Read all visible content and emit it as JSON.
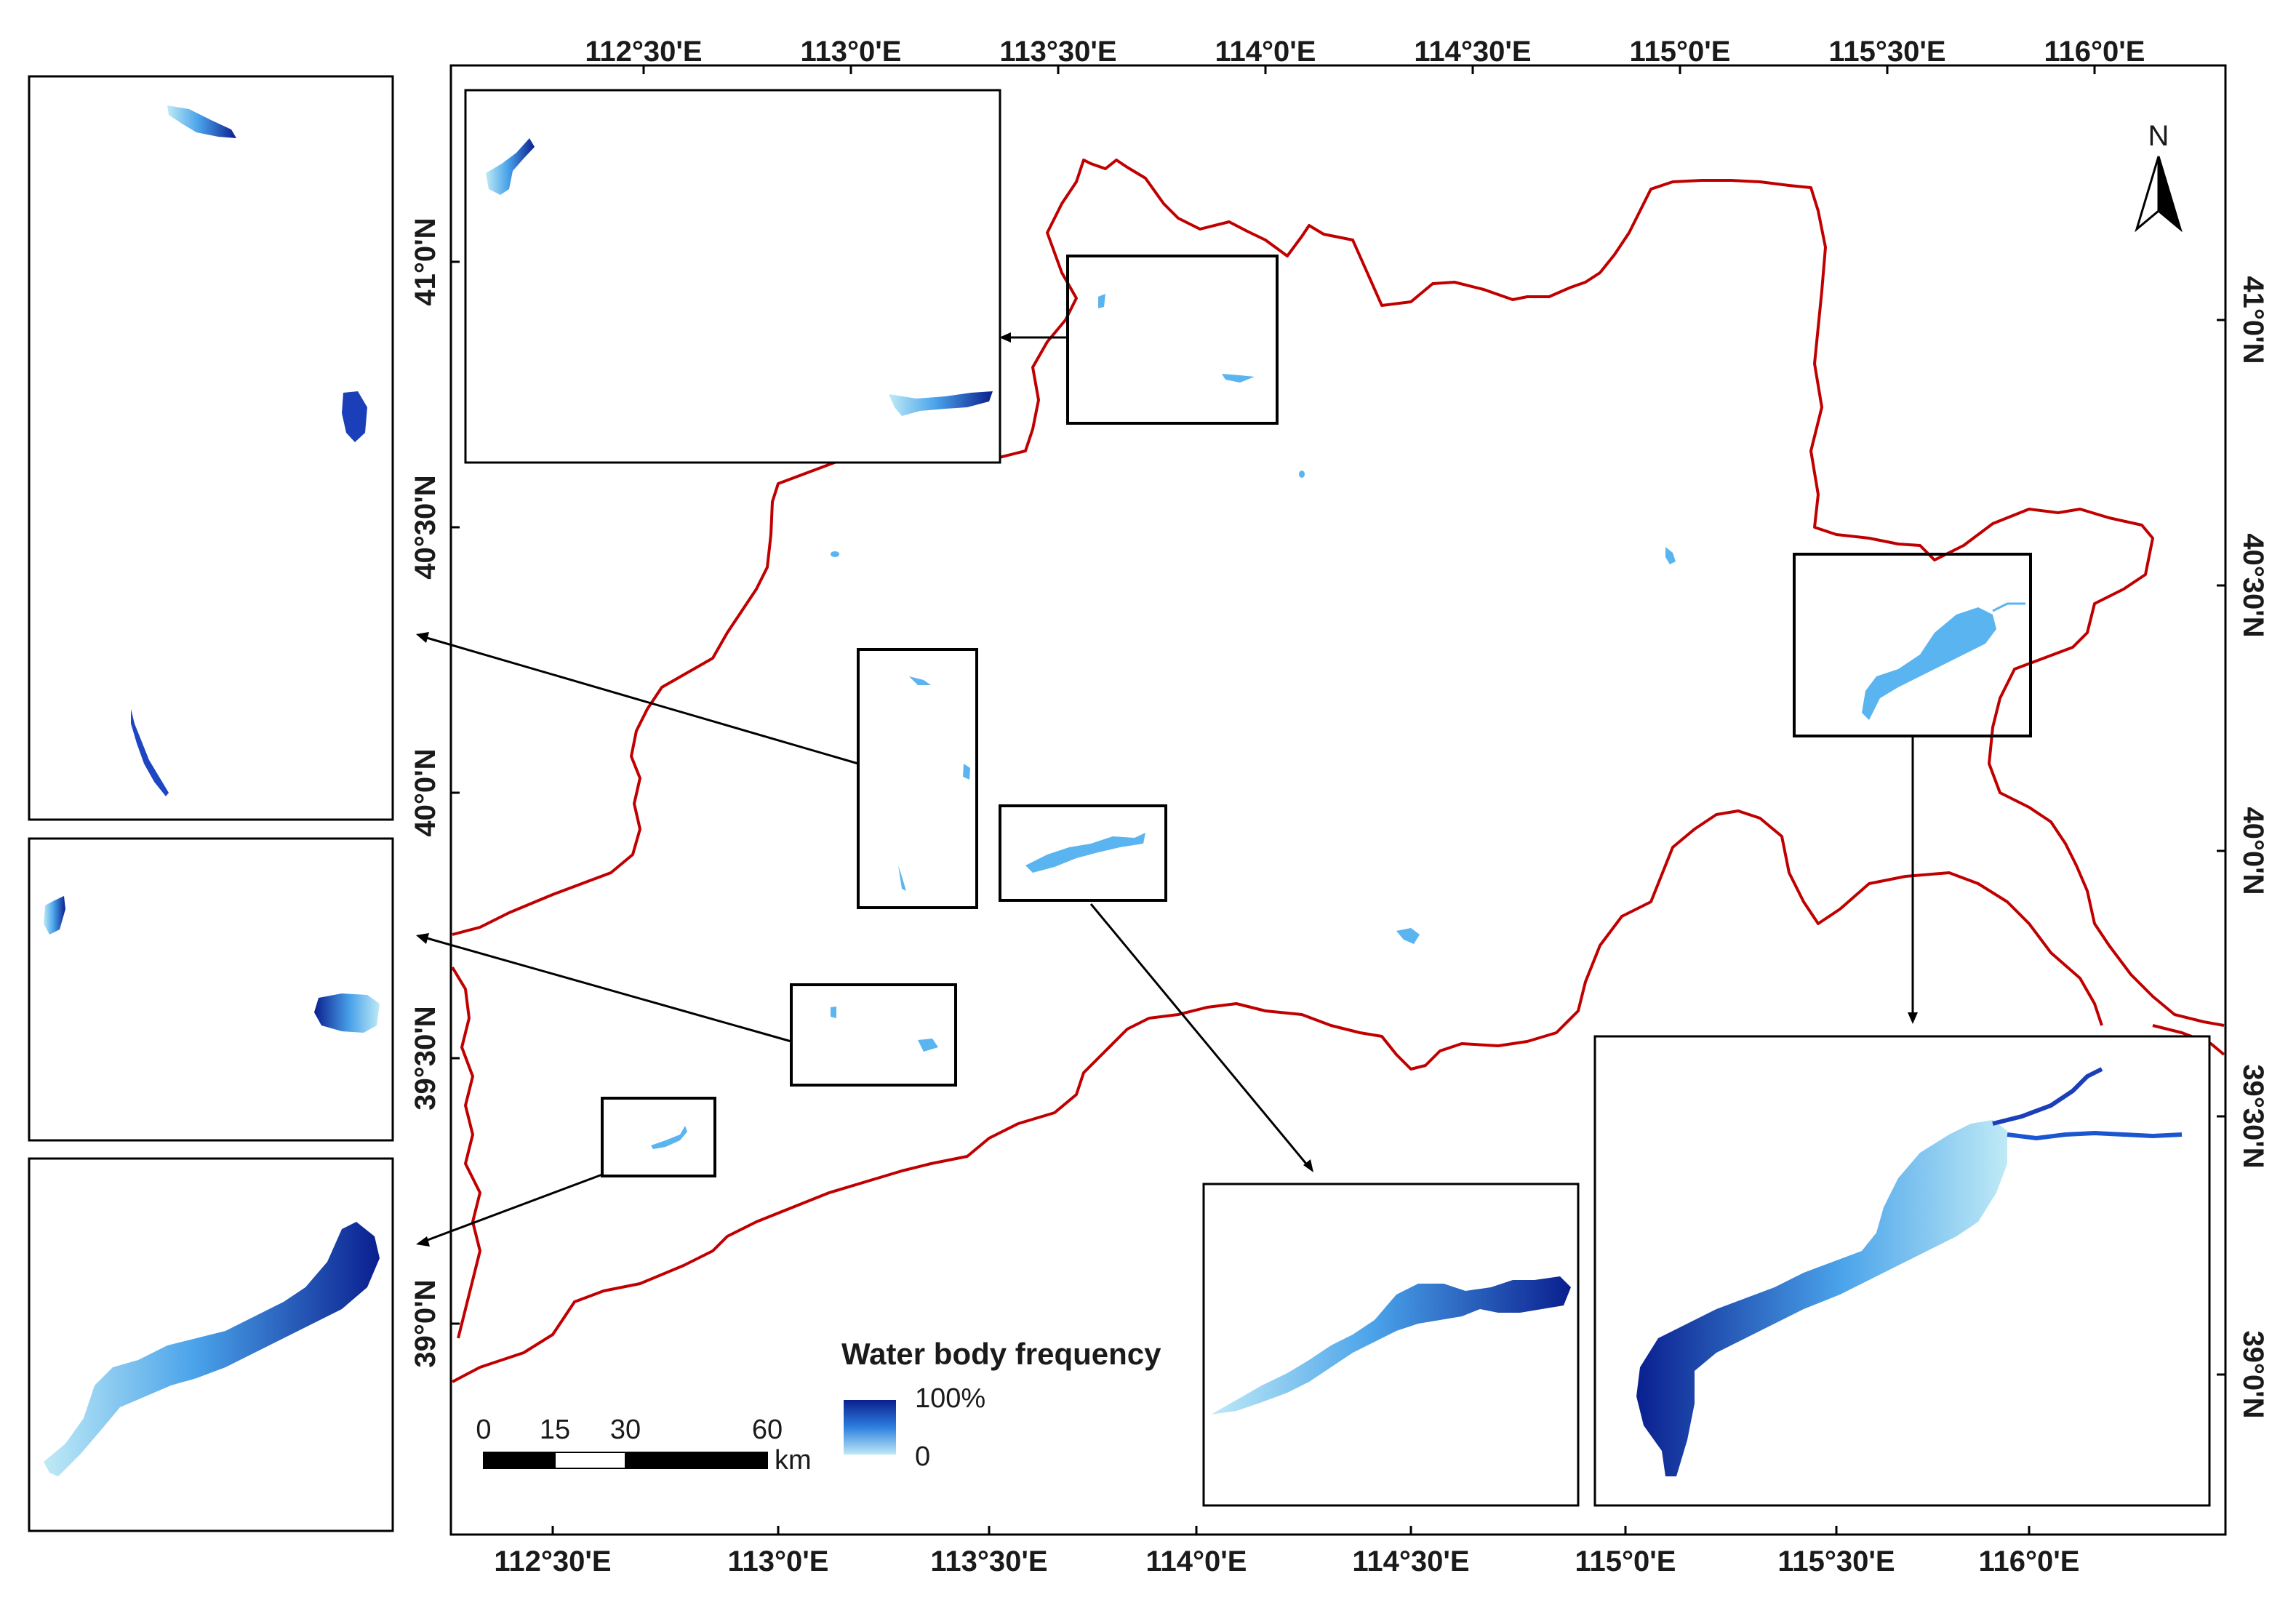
{
  "map": {
    "top_axis": [
      "112°30'E",
      "113°0'E",
      "113°30'E",
      "114°0'E",
      "114°30'E",
      "115°0'E",
      "115°30'E",
      "116°0'E"
    ],
    "bottom_axis": [
      "112°30'E",
      "113°0'E",
      "113°30'E",
      "114°0'E",
      "114°30'E",
      "115°0'E",
      "115°30'E",
      "116°0'E"
    ],
    "left_axis": [
      "41°0'N",
      "40°30'N",
      "40°0'N",
      "39°30'N",
      "39°0'N"
    ],
    "right_axis": [
      "41°0'N",
      "40°30'N",
      "40°0'N",
      "39°30'N",
      "39°0'N"
    ]
  },
  "legend": {
    "title": "Water body frequency",
    "max_label": "100%",
    "min_label": "0",
    "colors": {
      "high": "#0a1f8f",
      "mid": "#2e7fe0",
      "low": "#bfeaf6"
    }
  },
  "scale_bar": {
    "ticks": [
      "0",
      "15",
      "30",
      "60"
    ],
    "unit": "km"
  },
  "north_arrow": {
    "label": "N"
  },
  "colors": {
    "boundary": "#c00000",
    "frame": "#000000",
    "water_light": "#5ab4f0"
  }
}
